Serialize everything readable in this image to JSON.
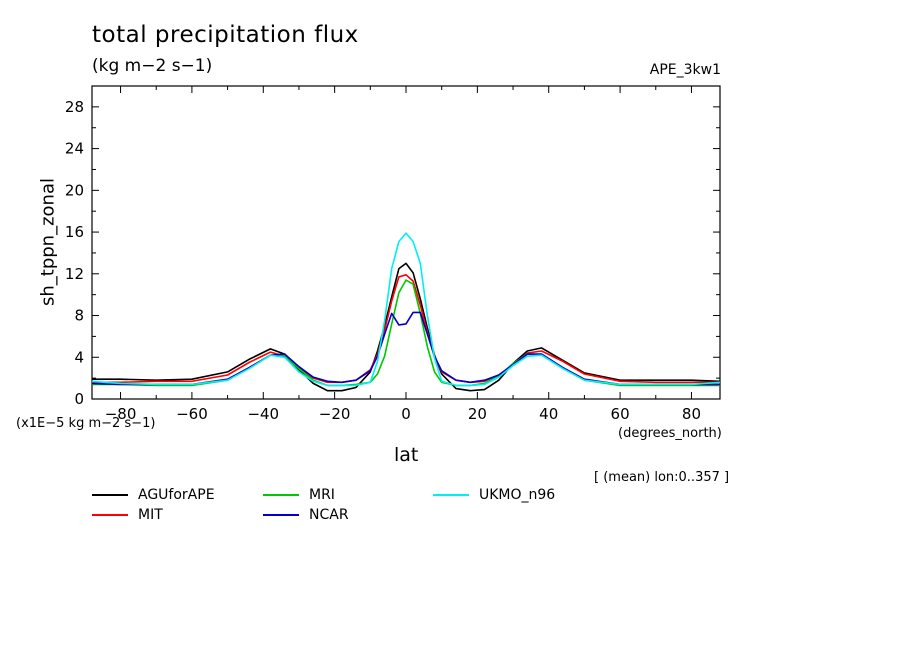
{
  "title": "total precipitation flux",
  "units_label": "(kg m−2 s−1)",
  "run_label": "APE_3kw1",
  "ylabel": "sh_tppn_zonal",
  "scale_label": "(x1E−5 kg m−2 s−1)",
  "xunits_label": "(degrees_north)",
  "xlabel": "lat",
  "note": "[ (mean) lon:0..357 ]",
  "chart_data": {
    "type": "line",
    "title": "total precipitation flux",
    "xlabel": "lat",
    "ylabel": "sh_tppn_zonal",
    "xlim": [
      -88,
      88
    ],
    "ylim": [
      0,
      30
    ],
    "xticks": [
      -80,
      -60,
      -40,
      -20,
      0,
      20,
      40,
      60,
      80
    ],
    "xtick_labels": [
      "−80",
      "−60",
      "−40",
      "−20",
      "0",
      "20",
      "40",
      "60",
      "80"
    ],
    "yticks": [
      0,
      4,
      8,
      12,
      16,
      20,
      24,
      28
    ],
    "ytick_labels": [
      "0",
      "4",
      "8",
      "12",
      "16",
      "20",
      "24",
      "28"
    ],
    "grid": false,
    "legend_position": "bottom",
    "x": [
      -88,
      -80,
      -70,
      -60,
      -50,
      -44,
      -38,
      -34,
      -30,
      -26,
      -22,
      -18,
      -14,
      -10,
      -8,
      -6,
      -4,
      -2,
      0,
      2,
      4,
      6,
      8,
      10,
      14,
      18,
      22,
      26,
      30,
      34,
      38,
      44,
      50,
      60,
      70,
      80,
      88
    ],
    "series": [
      {
        "name": "AGUforAPE",
        "color": "#000000",
        "values": [
          1.9,
          1.9,
          1.8,
          1.9,
          2.6,
          3.8,
          4.8,
          4.3,
          2.8,
          1.5,
          0.8,
          0.8,
          1.1,
          2.6,
          4.6,
          7.0,
          9.8,
          12.5,
          13.0,
          12.1,
          9.6,
          6.8,
          4.2,
          2.4,
          1.0,
          0.8,
          0.9,
          1.8,
          3.4,
          4.6,
          4.9,
          3.7,
          2.5,
          1.8,
          1.8,
          1.8,
          1.7
        ]
      },
      {
        "name": "MIT",
        "color": "#ff0000",
        "values": [
          1.6,
          1.6,
          1.7,
          1.7,
          2.3,
          3.5,
          4.5,
          4.1,
          2.9,
          2.0,
          1.6,
          1.6,
          1.8,
          2.8,
          4.3,
          6.6,
          9.4,
          11.7,
          11.9,
          11.3,
          9.0,
          6.4,
          4.0,
          2.6,
          1.8,
          1.6,
          1.7,
          2.3,
          3.3,
          4.4,
          4.6,
          3.6,
          2.4,
          1.7,
          1.6,
          1.6,
          1.6
        ]
      },
      {
        "name": "MRI",
        "color": "#00c800",
        "values": [
          1.4,
          1.4,
          1.3,
          1.3,
          1.8,
          3.0,
          4.2,
          4.2,
          2.9,
          1.8,
          1.3,
          1.3,
          1.4,
          1.6,
          2.4,
          4.1,
          7.2,
          10.2,
          11.4,
          11.0,
          8.2,
          5.0,
          2.6,
          1.6,
          1.3,
          1.3,
          1.5,
          2.2,
          3.4,
          4.3,
          4.2,
          3.0,
          1.8,
          1.3,
          1.3,
          1.3,
          1.3
        ]
      },
      {
        "name": "NCAR",
        "color": "#0000c8",
        "values": [
          1.5,
          1.4,
          1.4,
          1.4,
          1.9,
          3.0,
          4.2,
          4.3,
          3.1,
          2.1,
          1.7,
          1.6,
          1.8,
          2.7,
          4.1,
          6.2,
          8.2,
          7.1,
          7.2,
          8.3,
          8.3,
          6.2,
          4.1,
          2.7,
          1.8,
          1.6,
          1.8,
          2.3,
          3.3,
          4.3,
          4.3,
          3.0,
          1.9,
          1.4,
          1.4,
          1.4,
          1.4
        ]
      },
      {
        "name": "UKMO_n96",
        "color": "#00f0f0",
        "values": [
          1.7,
          1.5,
          1.4,
          1.4,
          1.8,
          2.9,
          4.2,
          4.0,
          2.6,
          1.7,
          1.3,
          1.3,
          1.3,
          1.6,
          3.6,
          7.5,
          12.5,
          15.1,
          15.9,
          15.1,
          13.0,
          8.0,
          3.9,
          1.7,
          1.3,
          1.3,
          1.4,
          2.1,
          3.2,
          4.1,
          4.2,
          2.9,
          1.8,
          1.4,
          1.4,
          1.4,
          1.6
        ]
      }
    ]
  }
}
